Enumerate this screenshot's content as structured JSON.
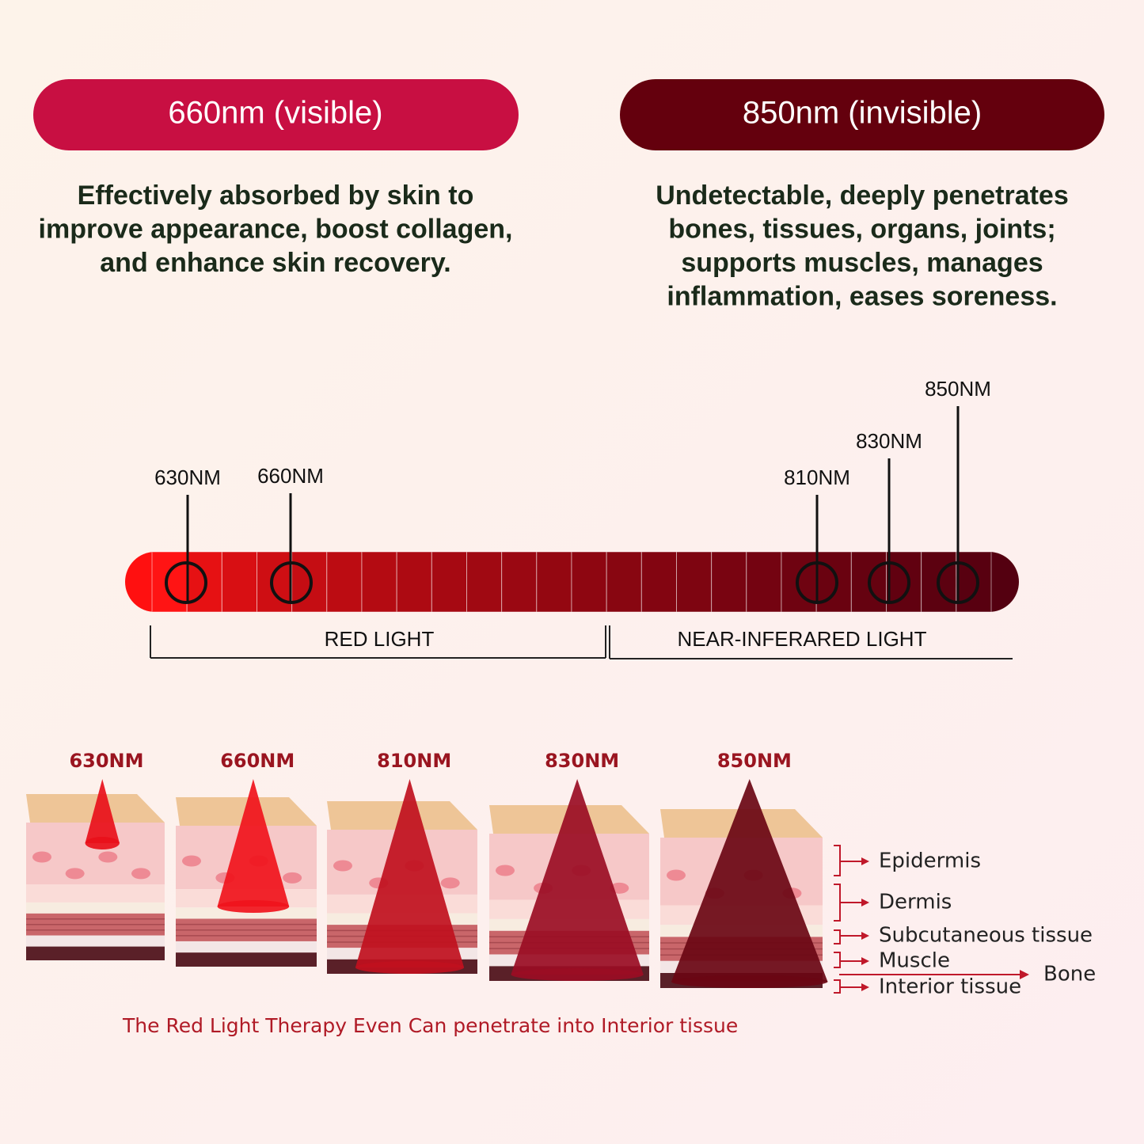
{
  "panels": [
    {
      "title": "660nm (visible)",
      "lines": [
        "Effectively absorbed by skin to",
        "improve appearance, boost collagen,",
        "and enhance skin recovery."
      ]
    },
    {
      "title": "850nm (invisible)",
      "lines": [
        "Undetectable, deeply penetrates",
        "bones, tissues, organs, joints;",
        "supports muscles, manages",
        "inflammation, eases soreness."
      ]
    }
  ],
  "spectrum": {
    "markers": [
      "630NM",
      "660NM",
      "810NM",
      "830NM",
      "850NM"
    ],
    "ranges": [
      "RED LIGHT",
      "NEAR-INFERARED LIGHT"
    ]
  },
  "penetration": {
    "labels": [
      "630NM",
      "660NM",
      "810NM",
      "830NM",
      "850NM"
    ],
    "layers": [
      "Epidermis",
      "Dermis",
      "Subcutaneous tissue",
      "Muscle",
      "Interior tissue"
    ],
    "bone": "Bone",
    "caption": "The Red Light Therapy Even  Can penetrate into Interior tissue"
  }
}
